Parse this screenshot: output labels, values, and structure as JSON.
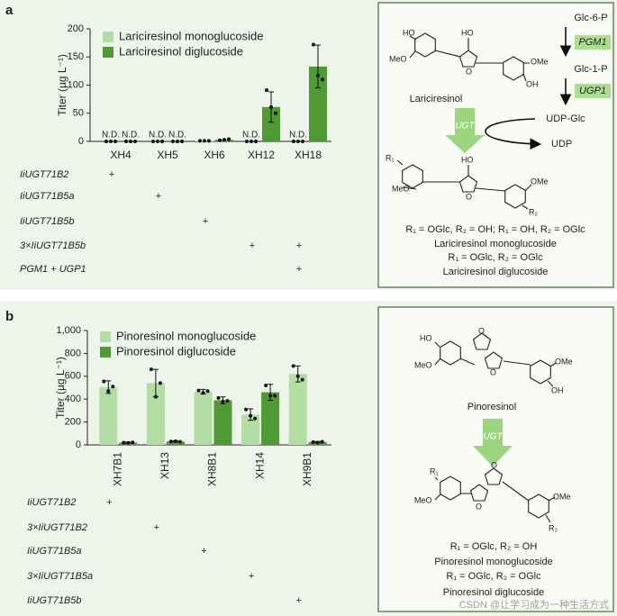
{
  "panel_labels": [
    "a",
    "b"
  ],
  "chart_data": [
    {
      "type": "bar",
      "ylabel": "Titer (µg L⁻¹)",
      "legend": "upper left",
      "categories": [
        "XH4",
        "XH5",
        "XH6",
        "XH12",
        "XH18"
      ],
      "ylim": [
        0,
        200
      ],
      "yticks": [
        0,
        50,
        100,
        150,
        200
      ],
      "series": [
        {
          "name": "Lariciresinol monoglucoside",
          "color": "#b2dda3",
          "values": [
            null,
            null,
            1,
            null,
            null
          ],
          "value_labels": [
            "N.D.",
            "N.D.",
            null,
            "N.D.",
            "N.D."
          ],
          "errors": [
            null,
            null,
            null,
            null,
            null
          ],
          "points": [
            [
              0,
              0,
              0
            ],
            [
              0,
              0,
              0
            ],
            [
              1,
              1,
              1
            ],
            [
              0,
              0,
              0
            ],
            [
              0,
              0,
              0
            ]
          ]
        },
        {
          "name": "Lariciresinol diglucoside",
          "color": "#4f9a33",
          "values": [
            null,
            null,
            3,
            61,
            133
          ],
          "value_labels": [
            "N.D.",
            "N.D.",
            null,
            null,
            null
          ],
          "errors": [
            null,
            null,
            null,
            27,
            38
          ],
          "points": [
            [
              0,
              0,
              0
            ],
            [
              0,
              0,
              0
            ],
            [
              2,
              3,
              4
            ],
            [
              91,
              61,
              50
            ],
            [
              172,
              117,
              110
            ]
          ]
        }
      ],
      "genotypes": {
        "labels": [
          "IiUGT71B2",
          "IiUGT71B5a",
          "IiUGT71B5b",
          "3×IiUGT71B5b",
          "PGM1 + UGP1"
        ],
        "marks": [
          [
            "+",
            null,
            null,
            null,
            null
          ],
          [
            null,
            "+",
            null,
            null,
            null
          ],
          [
            null,
            null,
            "+",
            null,
            null
          ],
          [
            null,
            null,
            null,
            "+",
            "+"
          ],
          [
            null,
            null,
            null,
            null,
            "+"
          ]
        ]
      }
    },
    {
      "type": "bar",
      "ylabel": "Titer (µg L⁻¹)",
      "legend": "upper left",
      "categories": [
        "XH7B1",
        "XH13",
        "XH8B1",
        "XH14",
        "XH9B1"
      ],
      "ylim": [
        0,
        1000
      ],
      "yticks": [
        0,
        200,
        400,
        600,
        800,
        {
          "value": 1000,
          "label": "1,000"
        }
      ],
      "series": [
        {
          "name": "Pinoresinol monoglucoside",
          "color": "#b2dda3",
          "values": [
            505,
            540,
            465,
            265,
            620
          ],
          "errors": [
            55,
            120,
            20,
            50,
            70
          ],
          "points": [
            [
              555,
              470,
              510
            ],
            [
              660,
              420,
              540
            ],
            [
              475,
              455,
              470
            ],
            [
              310,
              255,
              230
            ],
            [
              690,
              600,
              570
            ]
          ]
        },
        {
          "name": "Pinoresinol diglucoside",
          "color": "#4f9a33",
          "values": [
            20,
            30,
            390,
            460,
            25
          ],
          "errors": [
            5,
            5,
            30,
            70,
            5
          ],
          "points": [
            [
              20,
              18,
              22
            ],
            [
              30,
              32,
              28
            ],
            [
              410,
              380,
              385
            ],
            [
              520,
              430,
              430
            ],
            [
              25,
              20,
              28
            ]
          ]
        }
      ],
      "genotypes": {
        "labels": [
          "IiUGT71B2",
          "3×IiUGT71B2",
          "IiUGT71B5a",
          "3×IiUGT71B5a",
          "IiUGT71B5b"
        ],
        "marks": [
          [
            "+",
            null,
            null,
            null,
            null
          ],
          [
            null,
            "+",
            null,
            null,
            null
          ],
          [
            null,
            null,
            "+",
            null,
            null
          ],
          [
            null,
            null,
            null,
            "+",
            null
          ],
          [
            null,
            null,
            null,
            null,
            "+"
          ]
        ]
      }
    }
  ],
  "diagrams": [
    {
      "atoms": [
        "HO",
        "MeO",
        "HO",
        "O",
        "OMe",
        "OH",
        "R₁",
        "MeO",
        "HO",
        "O",
        "OMe",
        "R₂"
      ],
      "substrate": "Lariciresinol",
      "enzyme": "UGT",
      "pathway": [
        "Glc-6-P",
        "PGM1",
        "Glc-1-P",
        "UGP1",
        "UDP-Glc",
        "UDP"
      ],
      "captions": [
        "R₁ = OGlc, R₂ = OH; R₁ = OH, R₂ = OGlc",
        "Lariciresinol monoglucoside",
        "R₁ = OGlc, R₂ = OGlc",
        "Lariciresinol diglucoside"
      ]
    },
    {
      "atoms": [
        "HO",
        "MeO",
        "O",
        "O",
        "OMe",
        "OH",
        "R₁",
        "MeO",
        "O",
        "O",
        "OMe",
        "R₂"
      ],
      "substrate": "Pinoresinol",
      "enzyme": "UGT",
      "captions": [
        "R₁ = OGlc, R₂ = OH",
        "Pinoresinol monoglucoside",
        "R₁ = OGlc, R₂ = OGlc",
        "Pinoresinol diglucoside"
      ]
    }
  ],
  "watermark": "CSDN @让学习成为一种生活方式"
}
